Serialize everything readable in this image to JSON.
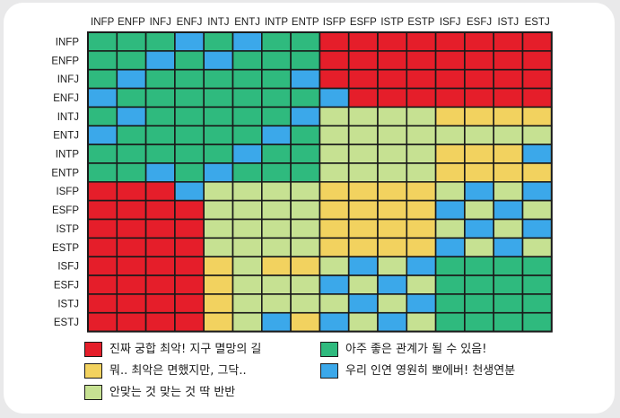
{
  "chart_data": {
    "type": "heatmap",
    "title": "",
    "columns": [
      "INFP",
      "ENFP",
      "INFJ",
      "ENFJ",
      "INTJ",
      "ENTJ",
      "INTP",
      "ENTP",
      "ISFP",
      "ESFP",
      "ISTP",
      "ESTP",
      "ISFJ",
      "ESFJ",
      "ISTJ",
      "ESTJ"
    ],
    "rows": [
      "INFP",
      "ENFP",
      "INFJ",
      "ENFJ",
      "INTJ",
      "ENTJ",
      "INTP",
      "ENTP",
      "ISFP",
      "ESFP",
      "ISTP",
      "ESTP",
      "ISFJ",
      "ESFJ",
      "ISTJ",
      "ESTJ"
    ],
    "matrix": [
      [
        "G",
        "G",
        "G",
        "B",
        "G",
        "B",
        "G",
        "G",
        "R",
        "R",
        "R",
        "R",
        "R",
        "R",
        "R",
        "R"
      ],
      [
        "G",
        "G",
        "B",
        "G",
        "B",
        "G",
        "G",
        "G",
        "R",
        "R",
        "R",
        "R",
        "R",
        "R",
        "R",
        "R"
      ],
      [
        "G",
        "B",
        "G",
        "G",
        "G",
        "G",
        "G",
        "B",
        "R",
        "R",
        "R",
        "R",
        "R",
        "R",
        "R",
        "R"
      ],
      [
        "B",
        "G",
        "G",
        "G",
        "G",
        "G",
        "G",
        "G",
        "B",
        "R",
        "R",
        "R",
        "R",
        "R",
        "R",
        "R"
      ],
      [
        "G",
        "B",
        "G",
        "G",
        "G",
        "G",
        "G",
        "B",
        "L",
        "L",
        "L",
        "L",
        "Y",
        "Y",
        "Y",
        "Y"
      ],
      [
        "B",
        "G",
        "G",
        "G",
        "G",
        "G",
        "B",
        "G",
        "L",
        "L",
        "L",
        "L",
        "L",
        "L",
        "L",
        "L"
      ],
      [
        "G",
        "G",
        "G",
        "G",
        "G",
        "B",
        "G",
        "G",
        "L",
        "L",
        "L",
        "L",
        "Y",
        "Y",
        "Y",
        "B"
      ],
      [
        "G",
        "G",
        "B",
        "G",
        "B",
        "G",
        "G",
        "G",
        "L",
        "L",
        "L",
        "L",
        "Y",
        "Y",
        "Y",
        "Y"
      ],
      [
        "R",
        "R",
        "R",
        "B",
        "L",
        "L",
        "L",
        "L",
        "Y",
        "Y",
        "Y",
        "Y",
        "L",
        "B",
        "L",
        "B"
      ],
      [
        "R",
        "R",
        "R",
        "R",
        "L",
        "L",
        "L",
        "L",
        "Y",
        "Y",
        "Y",
        "Y",
        "B",
        "L",
        "B",
        "L"
      ],
      [
        "R",
        "R",
        "R",
        "R",
        "L",
        "L",
        "L",
        "L",
        "Y",
        "Y",
        "Y",
        "Y",
        "L",
        "B",
        "L",
        "B"
      ],
      [
        "R",
        "R",
        "R",
        "R",
        "L",
        "L",
        "L",
        "L",
        "Y",
        "Y",
        "Y",
        "Y",
        "B",
        "L",
        "B",
        "L"
      ],
      [
        "R",
        "R",
        "R",
        "R",
        "Y",
        "L",
        "Y",
        "Y",
        "L",
        "B",
        "L",
        "B",
        "G",
        "G",
        "G",
        "G"
      ],
      [
        "R",
        "R",
        "R",
        "R",
        "Y",
        "L",
        "L",
        "L",
        "B",
        "L",
        "B",
        "L",
        "G",
        "G",
        "G",
        "G"
      ],
      [
        "R",
        "R",
        "R",
        "R",
        "Y",
        "L",
        "L",
        "L",
        "L",
        "B",
        "L",
        "B",
        "G",
        "G",
        "G",
        "G"
      ],
      [
        "R",
        "R",
        "R",
        "R",
        "Y",
        "L",
        "B",
        "Y",
        "B",
        "L",
        "B",
        "L",
        "G",
        "G",
        "G",
        "G"
      ]
    ],
    "categories": {
      "R": {
        "color": "#e51e2a",
        "label": "진짜 궁합 최악! 지구 멸망의 길"
      },
      "Y": {
        "color": "#f2d25f",
        "label": "뭐.. 최악은 면했지만, 그닥.."
      },
      "L": {
        "color": "#c6e192",
        "label": "안맞는 것 맞는 것 딱 반반"
      },
      "G": {
        "color": "#2fba7e",
        "label": "아주 좋은 관계가 될 수 있음!"
      },
      "B": {
        "color": "#3ba8ea",
        "label": "우리 인연 영원히 뽀에버! 천생연분"
      }
    },
    "legend": [
      "R",
      "G",
      "Y",
      "B",
      "L"
    ],
    "legend_position": "bottom",
    "grid": true
  }
}
